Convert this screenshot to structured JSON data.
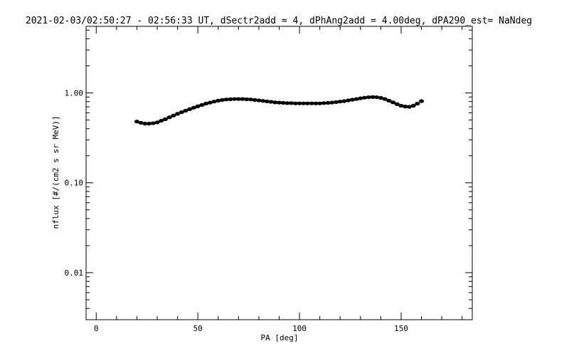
{
  "chart_data": {
    "type": "scatter",
    "title": "2021-02-03/02:50:27 - 02:56:33 UT, dSectr2add = 4, dPhAng2add = 4.00deg, dPA290_est=   NaNdeg",
    "xlabel": "PA [deg]",
    "ylabel": "nflux [#/(cm2 s sr MeV)]",
    "xlim": [
      -5,
      185
    ],
    "ylim": [
      0.003,
      5.5
    ],
    "yscale": "log",
    "grid": false,
    "x_ticks": [
      {
        "value": 0,
        "label": "0"
      },
      {
        "value": 50,
        "label": "50"
      },
      {
        "value": 100,
        "label": "100"
      },
      {
        "value": 150,
        "label": "150"
      }
    ],
    "y_ticks": [
      {
        "value": 0.01,
        "label": "0.01"
      },
      {
        "value": 0.1,
        "label": "0.10"
      },
      {
        "value": 1.0,
        "label": "1.00"
      }
    ],
    "series": [
      {
        "color": "#000000",
        "x": [
          20,
          22,
          24,
          26,
          28,
          30,
          32,
          34,
          36,
          38,
          40,
          42,
          44,
          46,
          48,
          50,
          52,
          54,
          56,
          58,
          60,
          62,
          64,
          66,
          68,
          70,
          72,
          74,
          76,
          78,
          80,
          82,
          84,
          86,
          88,
          90,
          92,
          94,
          96,
          98,
          100,
          102,
          104,
          106,
          108,
          110,
          112,
          114,
          116,
          118,
          120,
          122,
          124,
          126,
          128,
          130,
          132,
          134,
          136,
          138,
          140,
          142,
          144,
          146,
          148,
          150,
          152,
          154,
          156,
          158,
          160
        ],
        "y": [
          0.48,
          0.465,
          0.455,
          0.455,
          0.46,
          0.47,
          0.49,
          0.51,
          0.535,
          0.56,
          0.585,
          0.61,
          0.635,
          0.66,
          0.685,
          0.71,
          0.735,
          0.76,
          0.78,
          0.8,
          0.82,
          0.835,
          0.845,
          0.85,
          0.855,
          0.855,
          0.855,
          0.85,
          0.845,
          0.835,
          0.825,
          0.815,
          0.805,
          0.795,
          0.785,
          0.78,
          0.775,
          0.77,
          0.77,
          0.765,
          0.765,
          0.765,
          0.765,
          0.765,
          0.765,
          0.765,
          0.77,
          0.775,
          0.78,
          0.79,
          0.8,
          0.81,
          0.825,
          0.84,
          0.855,
          0.87,
          0.885,
          0.895,
          0.9,
          0.895,
          0.88,
          0.855,
          0.82,
          0.785,
          0.75,
          0.72,
          0.705,
          0.7,
          0.72,
          0.76,
          0.81
        ]
      }
    ]
  }
}
